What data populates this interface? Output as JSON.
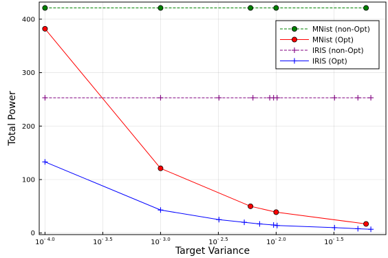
{
  "chart_data": {
    "type": "line",
    "title": "",
    "xlabel": "Target Variance",
    "ylabel": "Total Power",
    "xscale": "log10",
    "xlim_log10": [
      -4.05,
      -1.05
    ],
    "ylim": [
      -3,
      432
    ],
    "x_ticks": [
      {
        "exp": -4.0,
        "base": "10",
        "power": "- 4.0"
      },
      {
        "exp": -3.5,
        "base": "10",
        "power": "- 3.5"
      },
      {
        "exp": -3.0,
        "base": "10",
        "power": "- 3.0"
      },
      {
        "exp": -2.5,
        "base": "10",
        "power": "- 2.5"
      },
      {
        "exp": -2.0,
        "base": "10",
        "power": "- 2.0"
      },
      {
        "exp": -1.5,
        "base": "10",
        "power": "- 1.5"
      }
    ],
    "y_ticks": [
      0,
      100,
      200,
      300,
      400
    ],
    "grid": true,
    "legend_position": "top-right",
    "series": [
      {
        "name": "MNist (non-Opt)",
        "color": "#008000",
        "line_style": "dashed",
        "marker": "circle",
        "x": [
          0.0001,
          0.001,
          0.006,
          0.01,
          0.06
        ],
        "y": [
          421,
          421,
          421,
          421,
          421
        ]
      },
      {
        "name": "MNist (Opt)",
        "color": "#ff0000",
        "line_style": "solid",
        "marker": "circle",
        "x": [
          0.0001,
          0.001,
          0.006,
          0.01,
          0.06
        ],
        "y": [
          382,
          121,
          50,
          39,
          17
        ]
      },
      {
        "name": "IRIS (non-Opt)",
        "color": "#800080",
        "line_style": "dashed",
        "marker": "plus",
        "x": [
          0.0001,
          0.001,
          0.0032,
          0.0063,
          0.0088,
          0.0095,
          0.0102,
          0.032,
          0.051,
          0.066
        ],
        "y": [
          253,
          253,
          253,
          253,
          253,
          253,
          253,
          253,
          253,
          253
        ]
      },
      {
        "name": "IRIS (Opt)",
        "color": "#0000ff",
        "line_style": "solid",
        "marker": "plus",
        "x": [
          0.0001,
          0.001,
          0.0032,
          0.0053,
          0.0072,
          0.0095,
          0.0102,
          0.032,
          0.051,
          0.066
        ],
        "y": [
          133,
          43,
          25,
          20,
          17,
          15,
          14,
          10,
          8,
          7
        ]
      }
    ]
  }
}
